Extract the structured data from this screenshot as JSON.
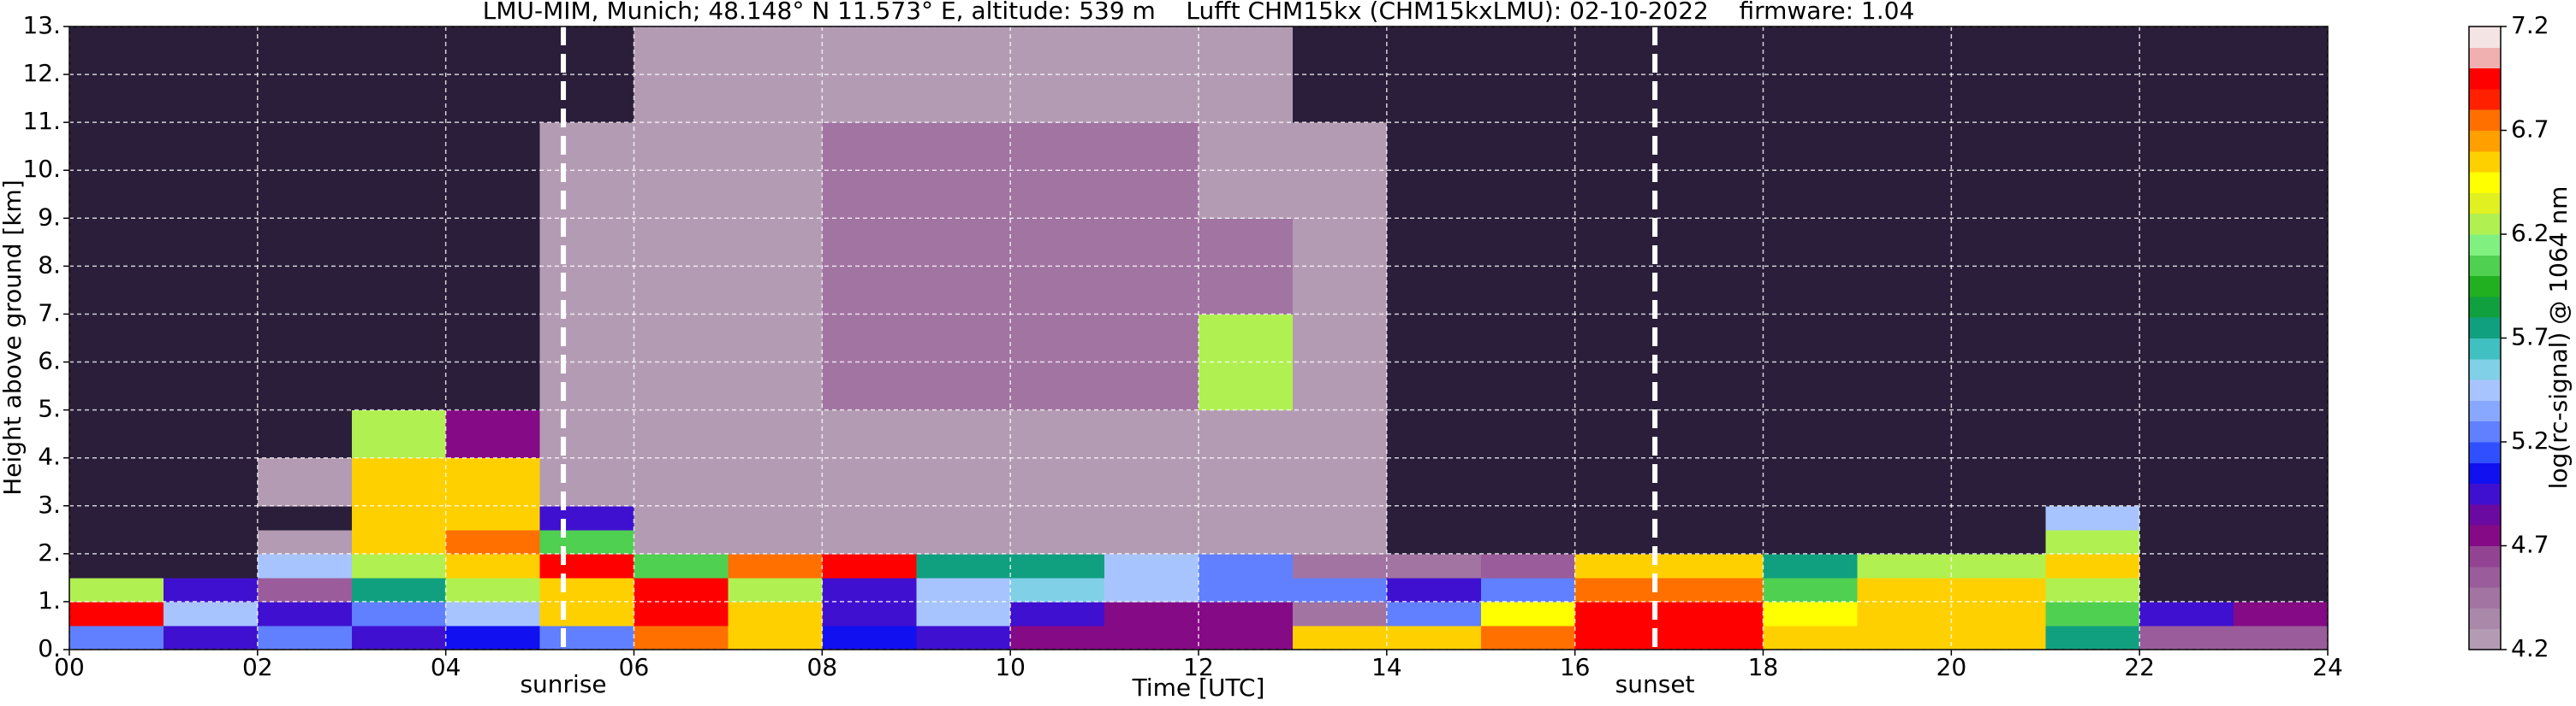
{
  "chart_data": {
    "type": "heatmap",
    "title": "LMU-MIM, Munich; 48.148° N 11.573° E, altitude: 539 m    Lufft CHM15kx (CHM15kxLMU): 02-10-2022    firmware: 1.04",
    "xlabel": "Time [UTC]",
    "ylabel": "Height above ground [km]",
    "colorbar_label": "log(rc-signal) @ 1064 nm",
    "xlim": [
      0,
      24
    ],
    "ylim": [
      0,
      13
    ],
    "xticks": [
      {
        "value": 0,
        "label": "00"
      },
      {
        "value": 2,
        "label": "02"
      },
      {
        "value": 4,
        "label": "04"
      },
      {
        "value": 6,
        "label": "06"
      },
      {
        "value": 8,
        "label": "08"
      },
      {
        "value": 10,
        "label": "10"
      },
      {
        "value": 12,
        "label": "12"
      },
      {
        "value": 14,
        "label": "14"
      },
      {
        "value": 16,
        "label": "16"
      },
      {
        "value": 18,
        "label": "18"
      },
      {
        "value": 20,
        "label": "20"
      },
      {
        "value": 22,
        "label": "22"
      },
      {
        "value": 24,
        "label": "24"
      }
    ],
    "yticks": [
      {
        "value": 0,
        "label": "0."
      },
      {
        "value": 1,
        "label": "1."
      },
      {
        "value": 2,
        "label": "2."
      },
      {
        "value": 3,
        "label": "3."
      },
      {
        "value": 4,
        "label": "4."
      },
      {
        "value": 5,
        "label": "5."
      },
      {
        "value": 6,
        "label": "6."
      },
      {
        "value": 7,
        "label": "7."
      },
      {
        "value": 8,
        "label": "8."
      },
      {
        "value": 9,
        "label": "9."
      },
      {
        "value": 10,
        "label": "10."
      },
      {
        "value": 11,
        "label": "11."
      },
      {
        "value": 12,
        "label": "12."
      },
      {
        "value": 13,
        "label": "13."
      }
    ],
    "grid": true,
    "xbins": [
      0,
      1,
      2,
      3,
      4,
      5,
      6,
      7,
      8,
      9,
      10,
      11,
      12,
      13,
      14,
      15,
      16,
      17,
      18,
      19,
      20,
      21,
      22,
      23,
      24
    ],
    "ybins": [
      0,
      0.5,
      1,
      1.5,
      2,
      2.5,
      3,
      4,
      5,
      7,
      9,
      11,
      13
    ],
    "values": [
      [
        5.3,
        5.0,
        5.2,
        5.0,
        5.1,
        5.2,
        6.7,
        6.5,
        5.1,
        5.0,
        4.7,
        4.7,
        4.7,
        6.5,
        6.6,
        6.8,
        7.0,
        6.9,
        6.6,
        6.5,
        6.5,
        5.8,
        4.6,
        4.6
      ],
      [
        7.0,
        5.5,
        5.0,
        5.2,
        5.5,
        6.5,
        7.0,
        6.6,
        5.0,
        5.4,
        5.0,
        4.8,
        4.7,
        4.5,
        5.2,
        6.4,
        7.0,
        7.0,
        6.4,
        6.6,
        6.6,
        6.0,
        5.0,
        4.8
      ],
      [
        6.2,
        5.0,
        4.6,
        5.8,
        6.2,
        6.6,
        7.0,
        6.2,
        5.0,
        5.5,
        5.6,
        5.5,
        5.3,
        5.2,
        5.0,
        5.3,
        6.8,
        6.7,
        6.0,
        6.5,
        6.5,
        6.3,
        4.0,
        4.0
      ],
      [
        4.0,
        4.0,
        5.5,
        6.2,
        6.5,
        7.0,
        6.0,
        6.8,
        6.9,
        5.7,
        5.8,
        5.4,
        5.2,
        4.5,
        4.4,
        4.6,
        6.5,
        6.6,
        5.8,
        6.3,
        6.2,
        6.5,
        4.0,
        4.0
      ],
      [
        4.0,
        4.0,
        4.3,
        6.5,
        6.7,
        6.0,
        4.3,
        4.3,
        4.3,
        4.3,
        4.3,
        4.3,
        4.3,
        4.2,
        4.0,
        4.0,
        4.0,
        4.0,
        4.0,
        4.0,
        4.0,
        6.2,
        4.0,
        4.0
      ],
      [
        4.0,
        4.0,
        4.0,
        6.6,
        6.6,
        5.0,
        4.3,
        4.3,
        4.3,
        4.3,
        4.3,
        4.3,
        4.3,
        4.2,
        4.0,
        4.0,
        4.0,
        4.0,
        4.0,
        4.0,
        4.0,
        5.5,
        4.0,
        4.0
      ],
      [
        4.0,
        4.0,
        4.2,
        6.6,
        6.5,
        4.3,
        4.3,
        4.3,
        4.3,
        4.3,
        4.3,
        4.3,
        4.3,
        4.2,
        4.0,
        4.0,
        4.0,
        4.0,
        4.0,
        4.0,
        4.0,
        4.0,
        4.0,
        4.0
      ],
      [
        4.0,
        4.0,
        4.0,
        6.2,
        4.8,
        4.2,
        4.3,
        4.3,
        4.3,
        4.3,
        4.3,
        4.3,
        4.3,
        4.2,
        4.0,
        4.0,
        4.0,
        4.0,
        4.0,
        4.0,
        4.0,
        4.0,
        4.0,
        4.0
      ],
      [
        4.0,
        4.0,
        4.0,
        4.0,
        4.0,
        4.2,
        4.3,
        4.3,
        4.4,
        4.4,
        4.4,
        4.4,
        6.3,
        4.2,
        4.1,
        4.1,
        4.0,
        4.0,
        4.0,
        4.0,
        4.0,
        4.0,
        4.0,
        4.0
      ],
      [
        4.0,
        4.0,
        4.0,
        4.0,
        4.0,
        4.2,
        4.2,
        4.3,
        4.4,
        4.5,
        4.5,
        4.5,
        4.4,
        4.2,
        4.1,
        4.1,
        4.0,
        4.0,
        4.0,
        4.0,
        4.0,
        4.0,
        4.0,
        4.0
      ],
      [
        4.0,
        4.0,
        4.0,
        4.0,
        4.0,
        4.2,
        4.2,
        4.3,
        4.4,
        4.4,
        4.4,
        4.4,
        4.3,
        4.2,
        4.1,
        4.1,
        4.0,
        4.0,
        4.0,
        4.0,
        4.0,
        4.0,
        4.0,
        4.0
      ],
      [
        4.0,
        4.0,
        4.0,
        4.0,
        4.0,
        4.1,
        4.2,
        4.2,
        4.3,
        4.3,
        4.3,
        4.3,
        4.2,
        4.1,
        4.1,
        4.0,
        4.0,
        4.0,
        4.0,
        4.0,
        4.0,
        4.0,
        4.0,
        4.0
      ]
    ],
    "clim": [
      4.2,
      7.2
    ],
    "colorbar_ticks": [
      4.2,
      4.7,
      5.2,
      5.7,
      6.2,
      6.7,
      7.2
    ],
    "colors": [
      "#b39cb3",
      "#aa88aa",
      "#a274a2",
      "#9a5c9a",
      "#924492",
      "#850a85",
      "#6a0aa0",
      "#4010d0",
      "#1010f0",
      "#3050ff",
      "#6080ff",
      "#88a8ff",
      "#a8c4ff",
      "#80d0e8",
      "#40c0c0",
      "#10a080",
      "#10a040",
      "#20b020",
      "#50d050",
      "#80f080",
      "#b0f050",
      "#e0f020",
      "#ffff00",
      "#ffd000",
      "#ffa000",
      "#ff7000",
      "#ff2000",
      "#ff0000",
      "#f0b0b0",
      "#f4e4e4"
    ],
    "under_color": "#2a1e3a",
    "vlines": [
      {
        "x": 5.25,
        "label": "sunrise"
      },
      {
        "x": 16.85,
        "label": "sunset"
      }
    ]
  }
}
